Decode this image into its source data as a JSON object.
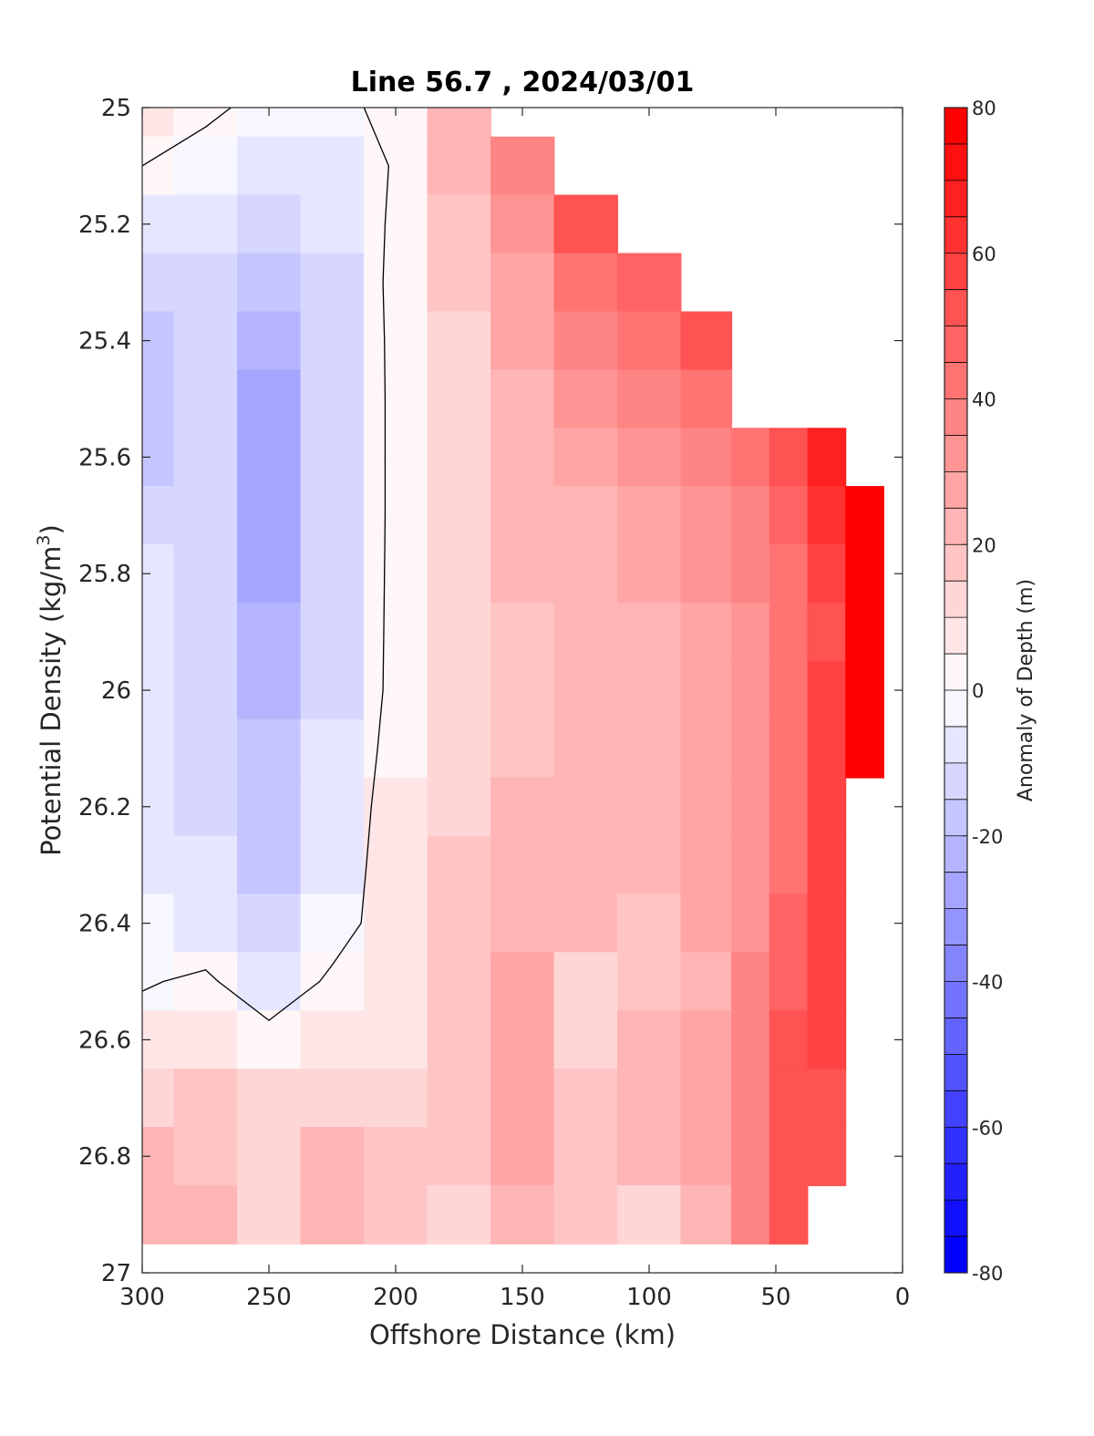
{
  "chart_data": {
    "type": "heatmap",
    "title": "Line 56.7 , 2024/03/01",
    "xlabel": "Offshore Distance (km)",
    "ylabel_main": "Potential Density (kg/m",
    "ylabel_sup": "3",
    "ylabel_close": ")",
    "xlim": [
      0,
      300
    ],
    "x_reversed": true,
    "ylim": [
      25,
      27
    ],
    "y_reversed": true,
    "xticks": [
      300,
      250,
      200,
      150,
      100,
      50,
      0
    ],
    "yticks": [
      "25",
      "25.2",
      "25.4",
      "25.6",
      "25.8",
      "26",
      "26.2",
      "26.4",
      "26.6",
      "26.8",
      "27"
    ],
    "colorbar": {
      "label": "Anomaly of Depth (m)",
      "range": [
        -80,
        80
      ],
      "interval": 5,
      "ticks": [
        "80",
        "60",
        "40",
        "20",
        "0",
        "-20",
        "-40",
        "-60",
        "-80"
      ],
      "colormap": "blue-white-red"
    },
    "x": [
      300,
      275,
      250,
      225,
      200,
      175,
      150,
      125,
      100,
      75,
      60,
      45,
      30,
      15
    ],
    "y": [
      25.0,
      25.1,
      25.2,
      25.3,
      25.4,
      25.5,
      25.6,
      25.7,
      25.8,
      25.9,
      26.0,
      26.1,
      26.2,
      26.3,
      26.4,
      26.5,
      26.6,
      26.7,
      26.8,
      26.9
    ],
    "values": [
      [
        8,
        2,
        -3,
        -2,
        2,
        20,
        null,
        null,
        null,
        null,
        null,
        null,
        null,
        null
      ],
      [
        0,
        -4,
        -8,
        -8,
        1,
        20,
        35,
        null,
        null,
        null,
        null,
        null,
        null,
        null
      ],
      [
        -10,
        -9,
        -14,
        -10,
        2,
        18,
        32,
        50,
        null,
        null,
        null,
        null,
        null,
        null
      ],
      [
        -14,
        -12,
        -20,
        -12,
        3,
        16,
        28,
        40,
        48,
        null,
        null,
        null,
        null,
        null
      ],
      [
        -16,
        -14,
        -24,
        -14,
        3,
        14,
        25,
        35,
        40,
        50,
        null,
        null,
        null,
        null
      ],
      [
        -17,
        -15,
        -28,
        -15,
        3,
        13,
        23,
        30,
        35,
        42,
        null,
        null,
        null,
        null
      ],
      [
        -16,
        -15,
        -28,
        -15,
        3,
        13,
        22,
        26,
        30,
        35,
        40,
        50,
        65,
        null
      ],
      [
        -14,
        -14,
        -27,
        -15,
        3,
        13,
        21,
        24,
        28,
        33,
        38,
        45,
        60,
        75
      ],
      [
        -10,
        -12,
        -26,
        -14,
        3,
        13,
        20,
        22,
        25,
        30,
        36,
        42,
        55,
        75
      ],
      [
        -8,
        -11,
        -25,
        -13,
        3,
        12,
        19,
        21,
        23,
        28,
        34,
        40,
        52,
        75
      ],
      [
        -7,
        -11,
        -22,
        -12,
        3,
        12,
        18,
        20,
        22,
        27,
        33,
        40,
        55,
        75
      ],
      [
        -6,
        -11,
        -20,
        -10,
        4,
        12,
        18,
        22,
        21,
        26,
        33,
        40,
        55,
        75
      ],
      [
        -6,
        -11,
        -20,
        -8,
        5,
        13,
        20,
        22,
        20,
        25,
        33,
        40,
        55,
        null
      ],
      [
        -8,
        -10,
        -18,
        -7,
        6,
        15,
        20,
        22,
        20,
        26,
        33,
        42,
        55,
        null
      ],
      [
        -4,
        -8,
        -15,
        -5,
        6,
        16,
        22,
        20,
        19,
        26,
        33,
        45,
        55,
        null
      ],
      [
        -1,
        2,
        -8,
        2,
        8,
        17,
        25,
        14,
        18,
        24,
        35,
        48,
        55,
        null
      ],
      [
        5,
        8,
        4,
        8,
        9,
        18,
        25,
        14,
        20,
        25,
        35,
        50,
        55,
        null
      ],
      [
        12,
        15,
        10,
        12,
        12,
        18,
        25,
        16,
        22,
        25,
        35,
        50,
        50,
        null
      ],
      [
        20,
        18,
        12,
        20,
        15,
        16,
        25,
        18,
        22,
        25,
        35,
        50,
        50,
        null
      ],
      [
        22,
        20,
        12,
        22,
        16,
        12,
        20,
        15,
        12,
        20,
        35,
        50,
        null,
        null
      ]
    ]
  }
}
